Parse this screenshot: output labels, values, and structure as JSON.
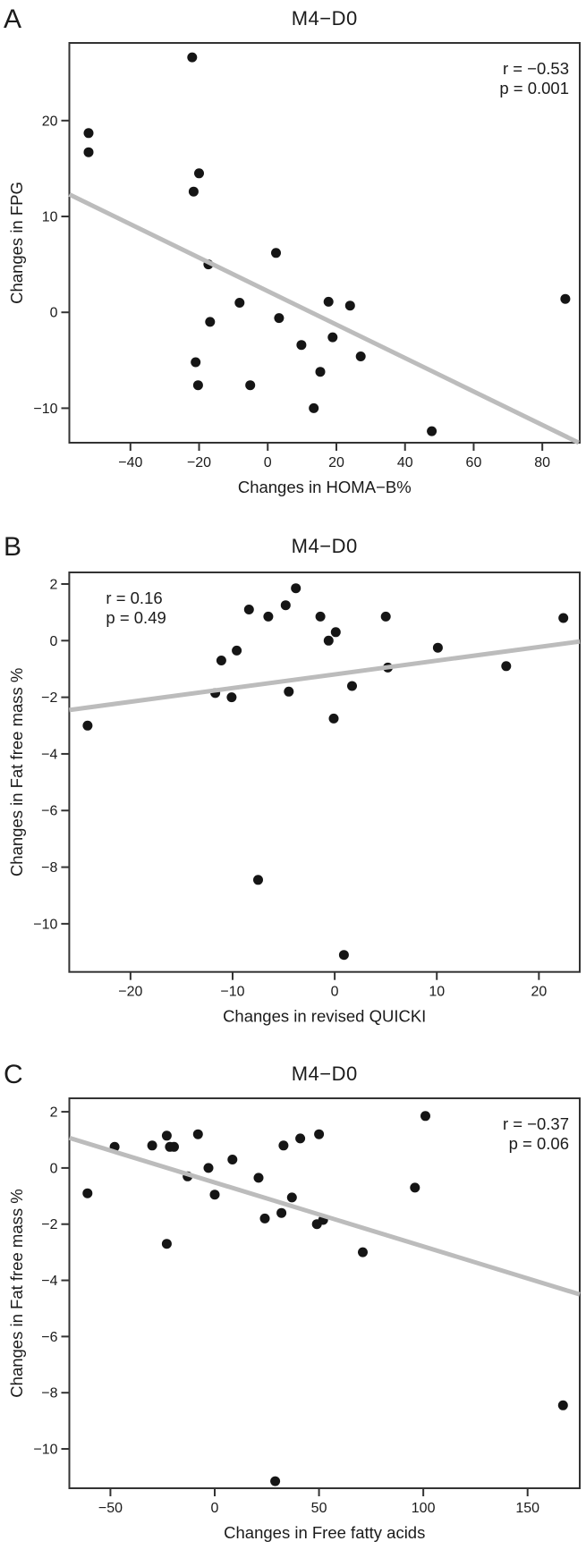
{
  "figure": {
    "background": "#ffffff",
    "point_color": "#151515",
    "trend_color": "#bcbcbc",
    "box_color": "#333333",
    "text_color": "#1b1b1b"
  },
  "chart_data": [
    {
      "type": "scatter",
      "panel_label": "A",
      "title": "M4−D0",
      "xlabel": "Changes in HOMA−B%",
      "ylabel": "Changes in FPG",
      "annotation": {
        "r_label": "r = −0.53",
        "p_label": "p = 0.001",
        "align": "right"
      },
      "xlim": [
        -57.8,
        90.9
      ],
      "ylim": [
        -13.6,
        28.1
      ],
      "x_ticks": [
        -40,
        -20,
        0,
        20,
        40,
        60,
        80
      ],
      "y_ticks": [
        -10,
        0,
        10,
        20
      ],
      "grid": false,
      "legend": "none",
      "points": [
        [
          -52.2,
          18.7
        ],
        [
          -52.2,
          16.7
        ],
        [
          -22,
          26.6
        ],
        [
          -21.6,
          12.6
        ],
        [
          -20,
          14.5
        ],
        [
          -21,
          -5.2
        ],
        [
          -20.3,
          -7.6
        ],
        [
          -17.3,
          5.0
        ],
        [
          -16.8,
          -1.0
        ],
        [
          -8.2,
          1.0
        ],
        [
          -5.1,
          -7.6
        ],
        [
          2.4,
          6.2
        ],
        [
          3.3,
          -0.6
        ],
        [
          9.8,
          -3.4
        ],
        [
          13.4,
          -10.0
        ],
        [
          15.3,
          -6.2
        ],
        [
          17.7,
          1.1
        ],
        [
          18.9,
          -2.6
        ],
        [
          24,
          0.7
        ],
        [
          27.1,
          -4.6
        ],
        [
          47.8,
          -12.4
        ],
        [
          86.7,
          1.4
        ]
      ],
      "trend": {
        "x1": -57.8,
        "y1": 12.3,
        "x2": 90.6,
        "y2": -13.6
      }
    },
    {
      "type": "scatter",
      "panel_label": "B",
      "title": "M4−D0",
      "xlabel": "Changes in revised QUICKI",
      "ylabel": "Changes in Fat free mass %",
      "annotation": {
        "r_label": "r = 0.16",
        "p_label": "p = 0.49",
        "align": "left"
      },
      "xlim": [
        -26.0,
        24.0
      ],
      "ylim": [
        -11.7,
        2.41
      ],
      "x_ticks": [
        -20,
        -10,
        0,
        10,
        20
      ],
      "y_ticks": [
        -10,
        -8,
        -6,
        -4,
        -2,
        0,
        2
      ],
      "grid": false,
      "legend": "none",
      "points": [
        [
          -24.2,
          -3.0
        ],
        [
          -11.7,
          -1.85
        ],
        [
          -11.1,
          -0.7
        ],
        [
          -10.1,
          -2.0
        ],
        [
          -9.6,
          -0.35
        ],
        [
          -8.4,
          1.1
        ],
        [
          -7.5,
          -8.45
        ],
        [
          -6.5,
          0.85
        ],
        [
          -4.8,
          1.25
        ],
        [
          -4.5,
          -1.8
        ],
        [
          -3.8,
          1.85
        ],
        [
          -1.4,
          0.85
        ],
        [
          -0.6,
          0.0
        ],
        [
          -0.1,
          -2.75
        ],
        [
          0.1,
          0.3
        ],
        [
          0.9,
          -11.1
        ],
        [
          1.7,
          -1.6
        ],
        [
          5.0,
          0.85
        ],
        [
          5.2,
          -0.95
        ],
        [
          10.1,
          -0.25
        ],
        [
          16.8,
          -0.9
        ],
        [
          22.4,
          0.8
        ]
      ],
      "trend": {
        "x1": -26.0,
        "y1": -2.45,
        "x2": 24.0,
        "y2": -0.03
      }
    },
    {
      "type": "scatter",
      "panel_label": "C",
      "title": "M4−D0",
      "xlabel": "Changes in Free fatty acids",
      "ylabel": "Changes in Fat free mass %",
      "annotation": {
        "r_label": "r = −0.37",
        "p_label": "p = 0.06",
        "align": "right"
      },
      "xlim": [
        -69.7,
        175.0
      ],
      "ylim": [
        -11.4,
        2.48
      ],
      "x_ticks": [
        -50,
        0,
        50,
        100,
        150
      ],
      "y_ticks": [
        -10,
        -8,
        -6,
        -4,
        -2,
        0,
        2
      ],
      "grid": false,
      "legend": "none",
      "points": [
        [
          -61,
          -0.9
        ],
        [
          -48,
          0.75
        ],
        [
          -30,
          0.8
        ],
        [
          -23,
          1.15
        ],
        [
          -21.5,
          0.75
        ],
        [
          -19.5,
          0.75
        ],
        [
          -23,
          -2.7
        ],
        [
          -13,
          -0.3
        ],
        [
          -8,
          1.2
        ],
        [
          -3,
          0.0
        ],
        [
          0,
          -0.95
        ],
        [
          8.5,
          0.3
        ],
        [
          21,
          -0.35
        ],
        [
          24,
          -1.8
        ],
        [
          29,
          -11.15
        ],
        [
          32,
          -1.6
        ],
        [
          33,
          0.8
        ],
        [
          37,
          -1.05
        ],
        [
          41,
          1.05
        ],
        [
          49,
          -2.0
        ],
        [
          50,
          1.2
        ],
        [
          52,
          -1.85
        ],
        [
          71,
          -3.0
        ],
        [
          96,
          -0.7
        ],
        [
          101,
          1.85
        ],
        [
          167,
          -8.45
        ]
      ],
      "trend": {
        "x1": -69.7,
        "y1": 1.07,
        "x2": 175.0,
        "y2": -4.5
      }
    }
  ]
}
